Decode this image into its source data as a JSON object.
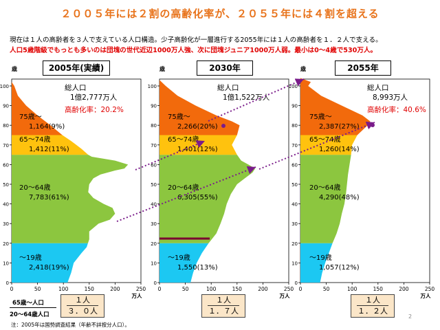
{
  "header": {
    "title": "２００５年には２割の高齢化率が、２０５５年には４割を超える",
    "line1": "現在は１人の高齢者を３人で支えている人口構造。少子高齢化が一層進行する2055年には１人の高齢者を１．２人で支える。",
    "line2": "人口5歳階級でもっとも多いのは団塊の世代近辺1000万人強、次に団塊ジュニア1000万人弱。最小は0～4歳で530万人。"
  },
  "colors": {
    "age75plus": "#f26a0c",
    "age65_74": "#ffc20e",
    "age20_64": "#8cc63f",
    "age0_19": "#1cc8f2",
    "arrow": "#7a1c8a",
    "title": "#e8731b"
  },
  "chart_data": [
    {
      "type": "area",
      "panel_title": "2005年(実績)",
      "y_unit": "歳",
      "x_unit": "万人",
      "xlim": [
        0,
        250
      ],
      "ylim": [
        0,
        105
      ],
      "x_ticks": [
        "0",
        "50",
        "100",
        "150",
        "200",
        "250"
      ],
      "y_ticks": [
        "0",
        "10",
        "20",
        "30",
        "40",
        "50",
        "60",
        "70",
        "80",
        "90",
        "100"
      ],
      "total_label": "総人口",
      "total_value": "1億2,777万人",
      "aging_rate": "高齢化率：20.2%",
      "profile_age": [
        0,
        5,
        10,
        15,
        18,
        22,
        26,
        30,
        32,
        35,
        38,
        40,
        43,
        46,
        50,
        53,
        55,
        57,
        58,
        60,
        62,
        64,
        65,
        68,
        70,
        72,
        75,
        80,
        85,
        90,
        95,
        100,
        102
      ],
      "profile_pop": [
        108,
        115,
        120,
        135,
        145,
        150,
        150,
        168,
        190,
        200,
        195,
        178,
        158,
        148,
        150,
        158,
        172,
        200,
        218,
        225,
        200,
        155,
        148,
        135,
        125,
        115,
        98,
        75,
        50,
        28,
        12,
        5,
        0
      ],
      "segments": [
        {
          "name": "75歳～",
          "value": "1,164(9%)"
        },
        {
          "name": "65～74歳",
          "value": "1,412(11%)"
        },
        {
          "name": "20～64歳",
          "value": "7,783(61%)"
        },
        {
          "name": "～19歳",
          "value": "2,418(19%)"
        }
      ],
      "ratio_num": "１人",
      "ratio_den": "３．０人"
    },
    {
      "type": "area",
      "panel_title": "2030年",
      "y_unit": "歳",
      "x_unit": "万人",
      "xlim": [
        0,
        250
      ],
      "ylim": [
        0,
        105
      ],
      "x_ticks": [
        "0",
        "50",
        "100",
        "150",
        "200",
        "250"
      ],
      "y_ticks": [
        "0",
        "10",
        "20",
        "30",
        "40",
        "50",
        "60",
        "70",
        "80",
        "90",
        "100"
      ],
      "total_label": "総人口",
      "total_value": "1億1,522万人",
      "aging_rate": "",
      "profile_age": [
        0,
        5,
        10,
        15,
        20,
        25,
        30,
        35,
        40,
        45,
        50,
        53,
        56,
        58,
        60,
        62,
        65,
        70,
        75,
        80,
        82,
        85,
        90,
        95,
        100,
        103
      ],
      "profile_pop": [
        60,
        65,
        72,
        82,
        95,
        110,
        118,
        125,
        130,
        138,
        150,
        165,
        180,
        185,
        172,
        158,
        150,
        140,
        150,
        155,
        140,
        110,
        70,
        35,
        12,
        0
      ],
      "segments": [
        {
          "name": "75歳～",
          "value": "2,266(20%)"
        },
        {
          "name": "65～74歳",
          "value": "1,401(12%)"
        },
        {
          "name": "20～64歳",
          "value": "6,305(55%)"
        },
        {
          "name": "～19歳",
          "value": "1,550(13%)"
        }
      ],
      "ratio_num": "１人",
      "ratio_den": "１．７人"
    },
    {
      "type": "area",
      "panel_title": "2055年",
      "y_unit": "歳",
      "x_unit": "万人",
      "xlim": [
        0,
        250
      ],
      "ylim": [
        0,
        105
      ],
      "x_ticks": [
        "0",
        "50",
        "100",
        "150",
        "200",
        "250"
      ],
      "y_ticks": [
        "0",
        "10",
        "20",
        "30",
        "40",
        "50",
        "60",
        "70",
        "80",
        "90",
        "100"
      ],
      "total_label": "総人口",
      "total_value": "8,993万人",
      "aging_rate": "高齢化率：40.6%",
      "profile_age": [
        0,
        5,
        10,
        15,
        20,
        25,
        30,
        35,
        40,
        45,
        50,
        55,
        60,
        65,
        70,
        75,
        80,
        82,
        85,
        90,
        95,
        100,
        102,
        104
      ],
      "profile_pop": [
        38,
        42,
        48,
        55,
        62,
        70,
        76,
        80,
        85,
        88,
        90,
        92,
        95,
        98,
        100,
        110,
        130,
        135,
        120,
        80,
        40,
        15,
        20,
        0
      ],
      "segments": [
        {
          "name": "75歳～",
          "value": "2,387(27%)"
        },
        {
          "name": "65～74歳",
          "value": "1,260(14%)"
        },
        {
          "name": "20～64歳",
          "value": "4,290(48%)"
        },
        {
          "name": "～19歳",
          "value": "1,057(12%)"
        }
      ],
      "ratio_num": "１人",
      "ratio_den": "１．２人"
    }
  ],
  "footer": {
    "fraction_num": "65歳～人口",
    "fraction_den": "20～64歳人口",
    "note": "注：2005年は国勢調査結果（年齢不詳按分人口）。",
    "page_number": "2"
  }
}
